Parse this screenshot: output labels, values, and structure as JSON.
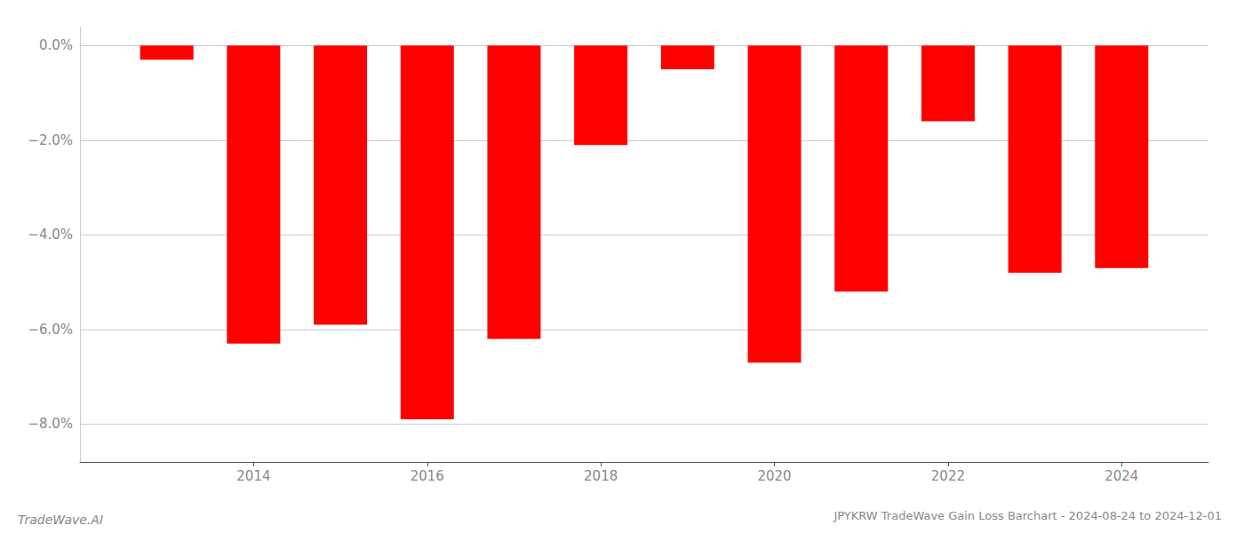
{
  "chart_data": {
    "type": "bar",
    "title": "JPYKRW TradeWave Gain Loss Barchart - 2024-08-24 to 2024-12-01",
    "annotations": [
      "TradeWave.AI"
    ],
    "x": [
      2013,
      2014,
      2015,
      2016,
      2017,
      2018,
      2019,
      2020,
      2021,
      2022,
      2023,
      2024
    ],
    "values": [
      -0.003,
      -0.063,
      -0.059,
      -0.079,
      -0.062,
      -0.021,
      -0.005,
      -0.067,
      -0.052,
      -0.016,
      -0.048,
      -0.047
    ],
    "color": "#ff0000",
    "xlim": [
      2012,
      2025
    ],
    "xticks": [
      2014,
      2016,
      2018,
      2020,
      2022,
      2024
    ],
    "ylim": [
      -0.088,
      0.004
    ],
    "yticks": [
      {
        "value": 0.0,
        "label": "0.0%"
      },
      {
        "value": -0.02,
        "label": "−2.0%"
      },
      {
        "value": -0.04,
        "label": "−4.0%"
      },
      {
        "value": -0.06,
        "label": "−6.0%"
      },
      {
        "value": -0.08,
        "label": "−8.0%"
      }
    ],
    "grid": true
  }
}
